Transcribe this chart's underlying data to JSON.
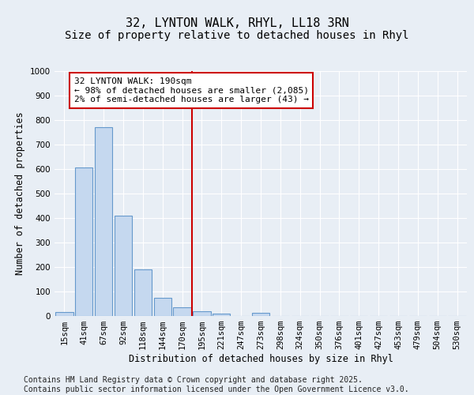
{
  "title1": "32, LYNTON WALK, RHYL, LL18 3RN",
  "title2": "Size of property relative to detached houses in Rhyl",
  "xlabel": "Distribution of detached houses by size in Rhyl",
  "ylabel": "Number of detached properties",
  "bin_labels": [
    "15sqm",
    "41sqm",
    "67sqm",
    "92sqm",
    "118sqm",
    "144sqm",
    "170sqm",
    "195sqm",
    "221sqm",
    "247sqm",
    "273sqm",
    "298sqm",
    "324sqm",
    "350sqm",
    "376sqm",
    "401sqm",
    "427sqm",
    "453sqm",
    "479sqm",
    "504sqm",
    "530sqm"
  ],
  "bin_values": [
    15,
    605,
    770,
    410,
    190,
    75,
    35,
    20,
    10,
    0,
    12,
    0,
    0,
    0,
    0,
    0,
    0,
    0,
    0,
    0,
    0
  ],
  "bar_color": "#c5d8ef",
  "bar_edge_color": "#6699cc",
  "vline_color": "#cc0000",
  "annotation_text": "32 LYNTON WALK: 190sqm\n← 98% of detached houses are smaller (2,085)\n2% of semi-detached houses are larger (43) →",
  "annotation_box_color": "white",
  "annotation_box_edge_color": "#cc0000",
  "ylim": [
    0,
    1000
  ],
  "yticks": [
    0,
    100,
    200,
    300,
    400,
    500,
    600,
    700,
    800,
    900,
    1000
  ],
  "bg_color": "#e8eef5",
  "plot_bg_color": "#e8eef5",
  "grid_color": "#ffffff",
  "footnote": "Contains HM Land Registry data © Crown copyright and database right 2025.\nContains public sector information licensed under the Open Government Licence v3.0.",
  "title_fontsize": 11,
  "subtitle_fontsize": 10,
  "axis_label_fontsize": 8.5,
  "tick_fontsize": 7.5,
  "annotation_fontsize": 8,
  "footnote_fontsize": 7
}
